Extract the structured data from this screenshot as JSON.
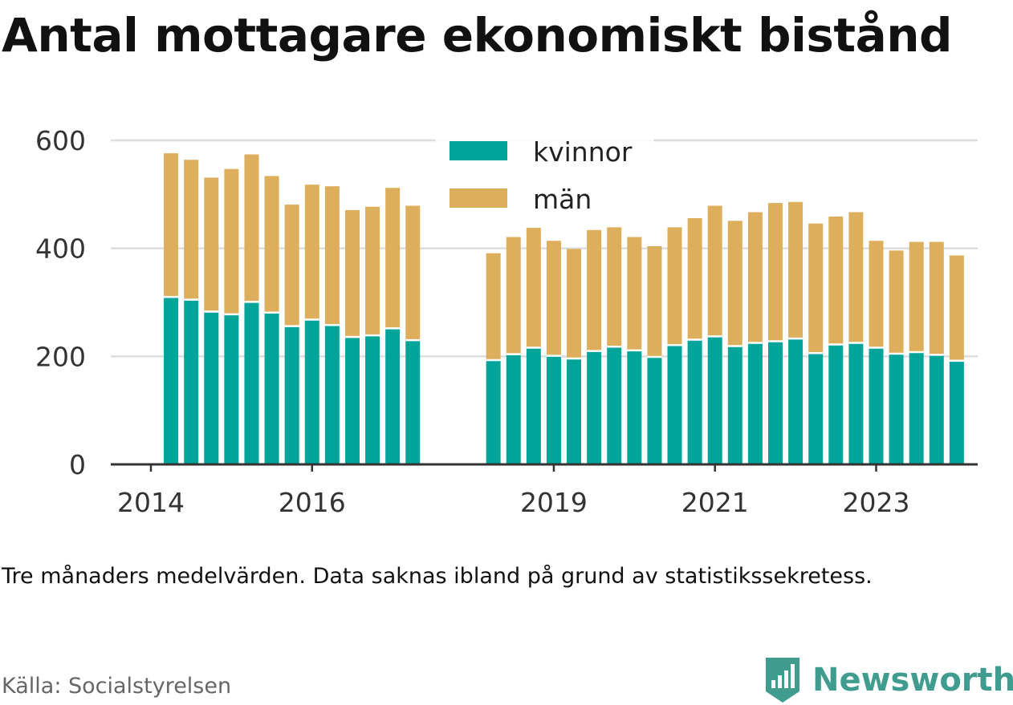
{
  "title": "Antal mottagare ekonomiskt bistånd",
  "note": "Tre månaders medelvärden. Data saknas ibland på grund av statistikssekretess.",
  "source": "Källa: Socialstyrelsen",
  "brand": "Newsworthy",
  "colors": {
    "kvinnor": "#00a499",
    "man": "#ddae5c",
    "grid": "#dddddd",
    "axis": "#333333",
    "brand": "#3f9c8e"
  },
  "chart_data": {
    "type": "bar",
    "stacked": true,
    "x_type": "time",
    "x": [
      "2014-04",
      "2014-07",
      "2014-10",
      "2015-01",
      "2015-04",
      "2015-07",
      "2015-10",
      "2016-01",
      "2016-04",
      "2016-07",
      "2016-10",
      "2017-01",
      "2017-04",
      "2018-04",
      "2018-07",
      "2018-10",
      "2019-01",
      "2019-04",
      "2019-07",
      "2019-10",
      "2020-01",
      "2020-04",
      "2020-07",
      "2020-10",
      "2021-01",
      "2021-04",
      "2021-07",
      "2021-10",
      "2022-01",
      "2022-04",
      "2022-07",
      "2022-10",
      "2023-01",
      "2023-04",
      "2023-07",
      "2023-10",
      "2024-01"
    ],
    "series": [
      {
        "name": "kvinnor",
        "values": [
          310,
          305,
          283,
          278,
          301,
          281,
          256,
          268,
          258,
          236,
          239,
          252,
          230,
          193,
          204,
          216,
          201,
          196,
          210,
          218,
          211,
          199,
          221,
          231,
          237,
          219,
          225,
          228,
          233,
          206,
          222,
          225,
          216,
          205,
          208,
          203,
          192
        ]
      },
      {
        "name": "män",
        "values": [
          266,
          259,
          248,
          269,
          273,
          253,
          225,
          250,
          257,
          235,
          238,
          260,
          249,
          198,
          217,
          222,
          213,
          203,
          224,
          221,
          210,
          205,
          218,
          225,
          242,
          232,
          242,
          256,
          253,
          240,
          237,
          242,
          198,
          191,
          204,
          209,
          195
        ]
      }
    ],
    "ylim": [
      0,
      600
    ],
    "yticks": [
      0,
      200,
      400,
      600
    ],
    "xticks": [
      "2014",
      "2016",
      "2019",
      "2021",
      "2023"
    ],
    "xlabel": "",
    "ylabel": "",
    "grid": true,
    "legend": {
      "position": "top-center",
      "entries": [
        "kvinnor",
        "män"
      ]
    }
  }
}
